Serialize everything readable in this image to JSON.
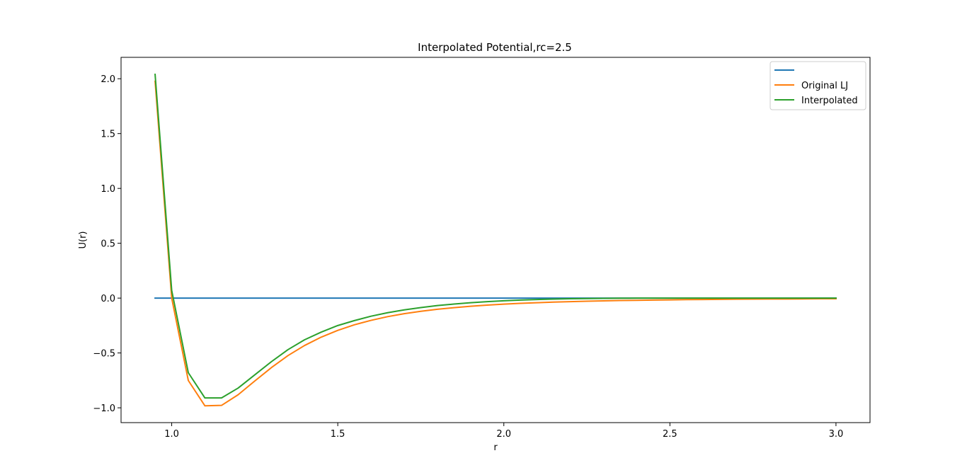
{
  "chart_data": {
    "type": "line",
    "title": "Interpolated Potential,rc=2.5",
    "xlabel": "r",
    "ylabel": "U(r)",
    "xlim": [
      0.8475,
      3.1025
    ],
    "ylim": [
      -1.135,
      2.195
    ],
    "xticks": [
      1.0,
      1.5,
      2.0,
      2.5,
      3.0
    ],
    "xtick_labels": [
      "1.0",
      "1.5",
      "2.0",
      "2.5",
      "3.0"
    ],
    "yticks": [
      -1.0,
      -0.5,
      0.0,
      0.5,
      1.0,
      1.5,
      2.0
    ],
    "ytick_labels": [
      "−1.0",
      "−0.5",
      "0.0",
      "0.5",
      "1.0",
      "1.5",
      "2.0"
    ],
    "grid": false,
    "legend_position": "top-right",
    "x": [
      0.95,
      1.0,
      1.05,
      1.1,
      1.15,
      1.2,
      1.25,
      1.3,
      1.35,
      1.4,
      1.45,
      1.5,
      1.55,
      1.6,
      1.65,
      1.7,
      1.75,
      1.8,
      1.85,
      1.9,
      1.95,
      2.0,
      2.05,
      2.1,
      2.15,
      2.2,
      2.25,
      2.3,
      2.35,
      2.4,
      2.45,
      2.5,
      2.55,
      2.6,
      2.65,
      2.7,
      2.75,
      2.8,
      2.85,
      2.9,
      2.95,
      3.0
    ],
    "series": [
      {
        "name": "",
        "color": "#1f77b4",
        "values": [
          0,
          0,
          0,
          0,
          0,
          0,
          0,
          0,
          0,
          0,
          0,
          0,
          0,
          0,
          0,
          0,
          0,
          0,
          0,
          0,
          0,
          0,
          0,
          0,
          0,
          0,
          0,
          0,
          0,
          0,
          0,
          0,
          0,
          0,
          0,
          0,
          0,
          0,
          0,
          0,
          0,
          0
        ]
      },
      {
        "name": "Original LJ",
        "color": "#ff7f0e",
        "values": [
          1.977,
          0.0,
          -0.751,
          -0.982,
          -0.978,
          -0.881,
          -0.756,
          -0.634,
          -0.524,
          -0.432,
          -0.356,
          -0.294,
          -0.243,
          -0.203,
          -0.169,
          -0.142,
          -0.12,
          -0.102,
          -0.087,
          -0.074,
          -0.064,
          -0.055,
          -0.048,
          -0.042,
          -0.036,
          -0.032,
          -0.028,
          -0.025,
          -0.022,
          -0.02,
          -0.018,
          -0.016,
          -0.014,
          -0.013,
          -0.011,
          -0.01,
          -0.009,
          -0.008,
          -0.008,
          -0.007,
          -0.006,
          -0.006
        ]
      },
      {
        "name": "Interpolated",
        "color": "#2ca02c",
        "values": [
          2.04,
          0.07,
          -0.68,
          -0.91,
          -0.91,
          -0.82,
          -0.7,
          -0.58,
          -0.47,
          -0.38,
          -0.31,
          -0.25,
          -0.205,
          -0.165,
          -0.133,
          -0.107,
          -0.086,
          -0.068,
          -0.054,
          -0.042,
          -0.032,
          -0.024,
          -0.018,
          -0.013,
          -0.009,
          -0.006,
          -0.004,
          -0.002,
          -0.001,
          0.0,
          0.0,
          0.0,
          0.0,
          0.0,
          0.0,
          0.0,
          0.0,
          0.0,
          0.0,
          0.0,
          0.0,
          0.0
        ]
      }
    ]
  }
}
